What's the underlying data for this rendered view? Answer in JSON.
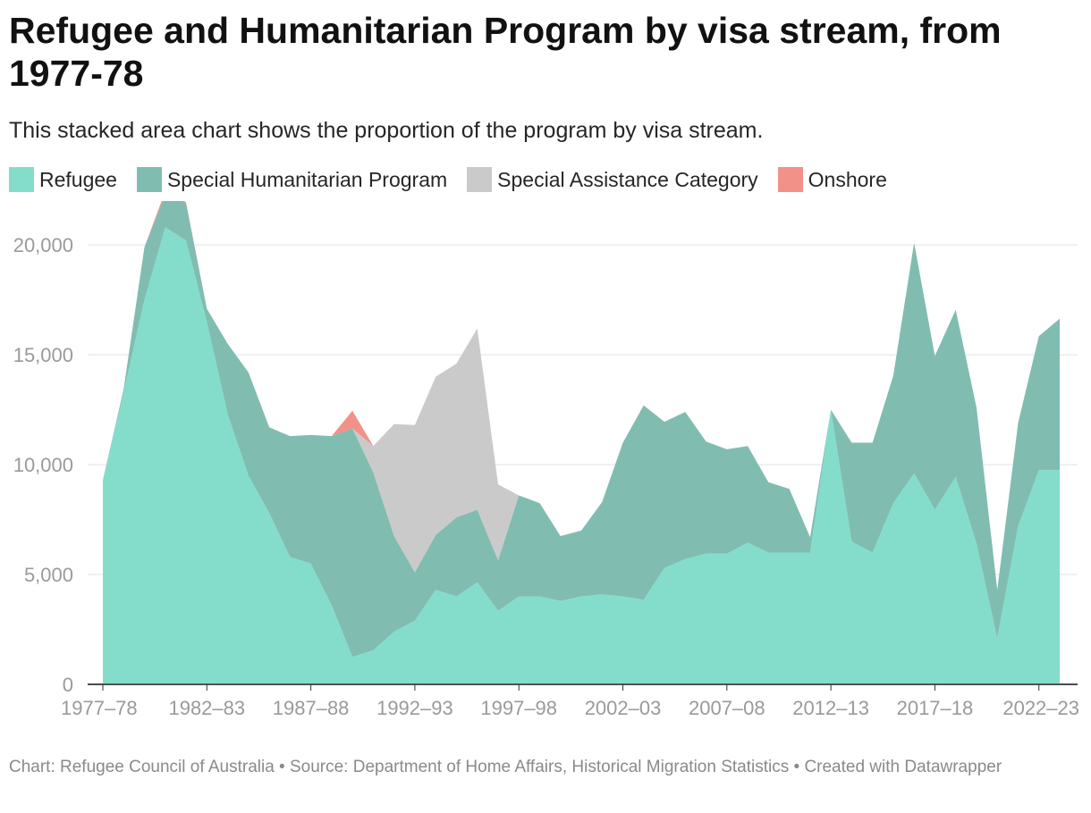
{
  "title": "Refugee and Humanitarian Program by visa stream, from 1977-78",
  "subtitle": "This stacked area chart shows the proportion of the program by visa stream.",
  "footer": "Chart: Refugee Council of Australia • Source: Department of Home Affairs, Historical Migration Statistics • Created with Datawrapper",
  "chart_data": {
    "type": "area",
    "stacked": true,
    "title": "Refugee and Humanitarian Program by visa stream, from 1977-78",
    "xlabel": "",
    "ylabel": "",
    "ylim": [
      0,
      22000
    ],
    "yticks": [
      0,
      5000,
      10000,
      15000,
      20000
    ],
    "ytick_labels": [
      "0",
      "5,000",
      "10,000",
      "15,000",
      "20,000"
    ],
    "xtick_labels": [
      "1977–78",
      "1982–83",
      "1987–88",
      "1992–93",
      "1997–98",
      "2002–03",
      "2007–08",
      "2012–13",
      "2017–18",
      "2022–23"
    ],
    "xtick_indices": [
      0,
      5,
      10,
      15,
      20,
      25,
      30,
      35,
      40,
      45
    ],
    "grid": true,
    "legend_position": "top-left",
    "categories": [
      "1977–78",
      "1978–79",
      "1979–80",
      "1980–81",
      "1981–82",
      "1982–83",
      "1983–84",
      "1984–85",
      "1985–86",
      "1986–87",
      "1987–88",
      "1988–89",
      "1989–90",
      "1990–91",
      "1991–92",
      "1992–93",
      "1993–94",
      "1994–95",
      "1995–96",
      "1996–97",
      "1997–98",
      "1998–99",
      "1999–00",
      "2000–01",
      "2001–02",
      "2002–03",
      "2003–04",
      "2004–05",
      "2005–06",
      "2006–07",
      "2007–08",
      "2008–09",
      "2009–10",
      "2010–11",
      "2011–12",
      "2012–13",
      "2013–14",
      "2014–15",
      "2015–16",
      "2016–17",
      "2017–18",
      "2018–19",
      "2019–20",
      "2020–21",
      "2021–22",
      "2022–23",
      "2023–24"
    ],
    "series": [
      {
        "name": "Refugee",
        "color": "#84ddcb",
        "values": [
          9300,
          13300,
          17500,
          20800,
          20200,
          16500,
          12300,
          9500,
          7800,
          5800,
          5500,
          3600,
          1250,
          1550,
          2400,
          2900,
          4300,
          4000,
          4650,
          3350,
          4000,
          4000,
          3800,
          4000,
          4100,
          4000,
          3850,
          5300,
          5700,
          5950,
          5950,
          6450,
          6000,
          6000,
          6000,
          12500,
          6500,
          6000,
          8250,
          9600,
          7950,
          9450,
          6400,
          2100,
          7200,
          9750,
          9750
        ]
      },
      {
        "name": "Special Humanitarian Program",
        "color": "#80bdb0",
        "values": [
          0,
          150,
          2400,
          1500,
          1700,
          600,
          3200,
          4700,
          3900,
          5500,
          5850,
          7700,
          10400,
          8100,
          4350,
          2200,
          2500,
          3600,
          3300,
          2300,
          4600,
          4250,
          2950,
          3000,
          4200,
          7000,
          8850,
          6650,
          6700,
          5100,
          4750,
          4400,
          3200,
          2900,
          700,
          0,
          4500,
          5000,
          5800,
          10500,
          7000,
          7600,
          6200,
          2200,
          4700,
          6100,
          6900
        ]
      },
      {
        "name": "Special Assistance Category",
        "color": "#cacaca",
        "values": [
          0,
          0,
          0,
          0,
          0,
          0,
          0,
          0,
          0,
          0,
          0,
          0,
          0,
          1200,
          5100,
          6700,
          7200,
          7000,
          8250,
          3450,
          0,
          0,
          0,
          0,
          0,
          0,
          0,
          0,
          0,
          0,
          0,
          0,
          0,
          0,
          0,
          0,
          0,
          0,
          0,
          0,
          0,
          0,
          0,
          0,
          0,
          0,
          0
        ]
      },
      {
        "name": "Onshore",
        "color": "#f29187",
        "values": [
          0,
          0,
          0,
          150,
          50,
          0,
          0,
          0,
          0,
          0,
          0,
          0,
          800,
          0,
          0,
          0,
          0,
          0,
          0,
          0,
          0,
          0,
          0,
          0,
          0,
          0,
          0,
          0,
          0,
          0,
          0,
          0,
          0,
          0,
          0,
          0,
          0,
          0,
          0,
          0,
          0,
          0,
          0,
          0,
          0,
          0,
          0
        ]
      },
      {
        "name": "Special Assistance Category",
        "color": "#cacaca",
        "hidden_in_legend": true,
        "values": [
          0,
          0,
          0,
          0,
          0,
          0,
          0,
          0,
          0,
          0,
          0,
          0,
          0,
          0,
          0,
          0,
          0,
          0,
          0,
          0,
          0,
          0,
          0,
          0,
          0,
          0,
          0,
          0,
          0,
          0,
          0,
          0,
          0,
          0,
          0,
          0,
          0,
          0,
          0,
          0,
          0,
          0,
          0,
          0,
          0,
          0,
          0
        ]
      }
    ]
  },
  "legend": [
    {
      "label": "Refugee",
      "color": "#84ddcb"
    },
    {
      "label": "Special Humanitarian Program",
      "color": "#80bdb0"
    },
    {
      "label": "Special Assistance Category",
      "color": "#cacaca"
    },
    {
      "label": "Onshore",
      "color": "#f29187"
    }
  ]
}
